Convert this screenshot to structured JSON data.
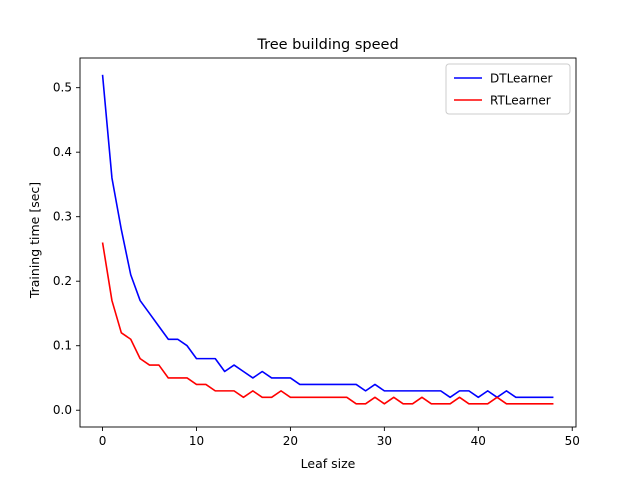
{
  "chart_data": {
    "type": "line",
    "title": "Tree building speed",
    "xlabel": "Leaf size",
    "ylabel": "Training time [sec]",
    "xlim": [
      -2.4,
      50.4
    ],
    "ylim": [
      -0.026,
      0.546
    ],
    "xticks": [
      0,
      10,
      20,
      30,
      40,
      50
    ],
    "yticks": [
      0.0,
      0.1,
      0.2,
      0.3,
      0.4,
      0.5
    ],
    "grid": false,
    "legend_position": "top-right",
    "x": [
      0,
      1,
      2,
      3,
      4,
      5,
      6,
      7,
      8,
      9,
      10,
      11,
      12,
      13,
      14,
      15,
      16,
      17,
      18,
      19,
      20,
      21,
      22,
      23,
      24,
      25,
      26,
      27,
      28,
      29,
      30,
      31,
      32,
      33,
      34,
      35,
      36,
      37,
      38,
      39,
      40,
      41,
      42,
      43,
      44,
      45,
      46,
      47,
      48
    ],
    "series": [
      {
        "name": "DTLearner",
        "color": "#0000ff",
        "values": [
          0.52,
          0.36,
          0.28,
          0.21,
          0.17,
          0.15,
          0.13,
          0.11,
          0.11,
          0.1,
          0.08,
          0.08,
          0.08,
          0.06,
          0.07,
          0.06,
          0.05,
          0.06,
          0.05,
          0.05,
          0.05,
          0.04,
          0.04,
          0.04,
          0.04,
          0.04,
          0.04,
          0.04,
          0.03,
          0.04,
          0.03,
          0.03,
          0.03,
          0.03,
          0.03,
          0.03,
          0.03,
          0.02,
          0.03,
          0.03,
          0.02,
          0.03,
          0.02,
          0.03,
          0.02,
          0.02,
          0.02,
          0.02,
          0.02
        ]
      },
      {
        "name": "RTLearner",
        "color": "#ff0000",
        "values": [
          0.26,
          0.17,
          0.12,
          0.11,
          0.08,
          0.07,
          0.07,
          0.05,
          0.05,
          0.05,
          0.04,
          0.04,
          0.03,
          0.03,
          0.03,
          0.02,
          0.03,
          0.02,
          0.02,
          0.03,
          0.02,
          0.02,
          0.02,
          0.02,
          0.02,
          0.02,
          0.02,
          0.01,
          0.01,
          0.02,
          0.01,
          0.02,
          0.01,
          0.01,
          0.02,
          0.01,
          0.01,
          0.01,
          0.02,
          0.01,
          0.01,
          0.01,
          0.02,
          0.01,
          0.01,
          0.01,
          0.01,
          0.01,
          0.01
        ]
      }
    ]
  }
}
